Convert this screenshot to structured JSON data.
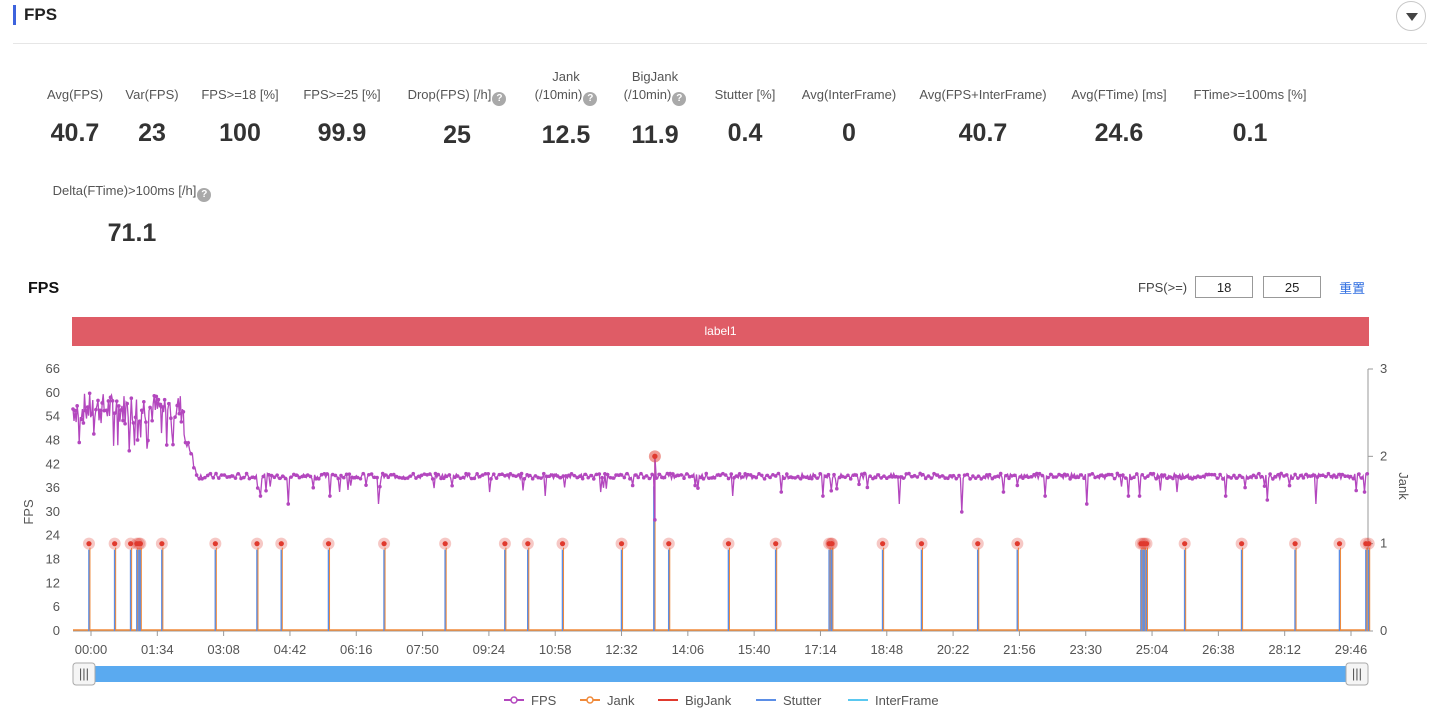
{
  "section": {
    "title": "FPS"
  },
  "metrics_row1": [
    {
      "label": "Avg(FPS)",
      "value": "40.7",
      "help": false
    },
    {
      "label": "Var(FPS)",
      "value": "23",
      "help": false
    },
    {
      "label": "FPS>=18 [%]",
      "value": "100",
      "help": false
    },
    {
      "label": "FPS>=25 [%]",
      "value": "99.9",
      "help": false
    },
    {
      "label": "Drop(FPS) [/h]",
      "value": "25",
      "help": true
    },
    {
      "label_top": "Jank",
      "label": "(/10min)",
      "value": "12.5",
      "help": true
    },
    {
      "label_top": "BigJank",
      "label": "(/10min)",
      "value": "11.9",
      "help": true
    },
    {
      "label": "Stutter [%]",
      "value": "0.4",
      "help": false
    },
    {
      "label": "Avg(InterFrame)",
      "value": "0",
      "help": false
    },
    {
      "label": "Avg(FPS+InterFrame)",
      "value": "40.7",
      "help": false
    },
    {
      "label": "Avg(FTime) [ms]",
      "value": "24.6",
      "help": false
    },
    {
      "label": "FTime>=100ms [%]",
      "value": "0.1",
      "help": false
    }
  ],
  "metrics_row2": [
    {
      "label": "Delta(FTime)>100ms [/h]",
      "value": "71.1",
      "help": true
    }
  ],
  "help_glyph": "?",
  "chart_section": {
    "title": "FPS",
    "filter_label": "FPS(>=)",
    "filter_low": "18",
    "filter_high": "25",
    "reset_label": "重置",
    "band_label": "label1"
  },
  "colors": {
    "fps": "#b347be",
    "jank": "#f08a3a",
    "bigjank": "#e03a2e",
    "stutter": "#5b8ee6",
    "interframe": "#5ac8f0",
    "band": "#df5c66",
    "accent": "#3d63dd",
    "link": "#2f6ee0"
  },
  "chart_data": {
    "type": "line",
    "xlabel": "",
    "ylabel": "FPS",
    "y2label": "Jank",
    "ylim": [
      0,
      66
    ],
    "y2lim": [
      0,
      3
    ],
    "yticks": [
      "0",
      "6",
      "12",
      "18",
      "24",
      "30",
      "36",
      "42",
      "48",
      "54",
      "60",
      "66"
    ],
    "y2ticks": [
      "0",
      "1",
      "2",
      "3"
    ],
    "xticks": [
      "00:00",
      "01:34",
      "03:08",
      "04:42",
      "06:16",
      "07:50",
      "09:24",
      "10:58",
      "12:32",
      "14:06",
      "15:40",
      "17:14",
      "18:48",
      "20:22",
      "21:56",
      "23:30",
      "25:04",
      "26:38",
      "28:12",
      "29:46"
    ],
    "xrange_seconds": [
      0,
      1865
    ],
    "legend": [
      "FPS",
      "Jank",
      "BigJank",
      "Stutter",
      "InterFrame"
    ],
    "legend_position": "bottom",
    "fps_early_segment": {
      "end_s": 160,
      "level_range": [
        48,
        60
      ]
    },
    "fps_steady_level": 39,
    "fps_drops": [
      {
        "t": 270,
        "fps": 34
      },
      {
        "t": 310,
        "fps": 32
      },
      {
        "t": 370,
        "fps": 34
      },
      {
        "t": 440,
        "fps": 32
      },
      {
        "t": 520,
        "fps": 36
      },
      {
        "t": 600,
        "fps": 35
      },
      {
        "t": 680,
        "fps": 34
      },
      {
        "t": 760,
        "fps": 35
      },
      {
        "t": 815,
        "fps": 24
      },
      {
        "t": 838,
        "fps": 28
      },
      {
        "t": 900,
        "fps": 36
      },
      {
        "t": 950,
        "fps": 34
      },
      {
        "t": 1020,
        "fps": 35
      },
      {
        "t": 1080,
        "fps": 34
      },
      {
        "t": 1135,
        "fps": 33
      },
      {
        "t": 1190,
        "fps": 32
      },
      {
        "t": 1280,
        "fps": 30
      },
      {
        "t": 1340,
        "fps": 35
      },
      {
        "t": 1400,
        "fps": 34
      },
      {
        "t": 1460,
        "fps": 32
      },
      {
        "t": 1520,
        "fps": 34
      },
      {
        "t": 1536,
        "fps": 34
      },
      {
        "t": 1590,
        "fps": 35
      },
      {
        "t": 1660,
        "fps": 34
      },
      {
        "t": 1720,
        "fps": 33
      },
      {
        "t": 1790,
        "fps": 32
      },
      {
        "t": 1860,
        "fps": 35
      }
    ],
    "fps_spike": {
      "t": 838,
      "fps": 44
    },
    "jank_events_s": [
      23,
      60,
      83,
      92,
      95,
      97,
      128,
      205,
      265,
      300,
      368,
      448,
      536,
      622,
      655,
      705,
      790,
      858,
      944,
      1012,
      1089,
      1092,
      1093,
      1166,
      1222,
      1303,
      1360,
      1538,
      1541,
      1543,
      1546,
      1601,
      1683,
      1760,
      1824,
      1862,
      1866
    ],
    "jank_value": 1,
    "jank_spike": {
      "t": 838,
      "value": 2
    }
  },
  "scroll": {
    "left_handle_glyph": "|||",
    "right_handle_glyph": "|||"
  }
}
